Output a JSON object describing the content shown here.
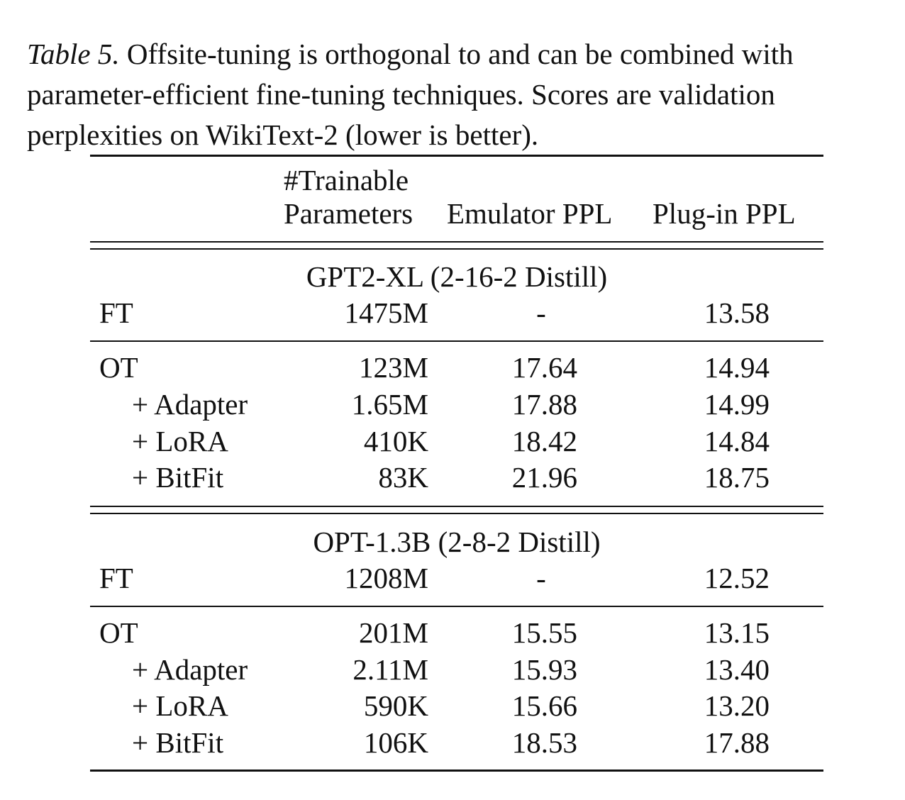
{
  "caption": {
    "label": "Table 5.",
    "text": " Offsite-tuning is orthogonal to and can be combined with parameter-efficient fine-tuning techniques. Scores are validation perplexities on WikiText-2 (lower is better)."
  },
  "headers": {
    "params_line1": "#Trainable",
    "params_line2": "Parameters",
    "emulator": "Emulator PPL",
    "plugin": "Plug-in PPL"
  },
  "sections": [
    {
      "title": "GPT2-XL (2-16-2 Distill)",
      "ft": {
        "method": "FT",
        "params": "1475M",
        "emulator": "-",
        "plugin": "13.58"
      },
      "ot_rows": [
        {
          "method": "OT",
          "params": "123M",
          "emulator": "17.64",
          "plugin": "14.94"
        },
        {
          "method": "+ Adapter",
          "params": "1.65M",
          "emulator": "17.88",
          "plugin": "14.99"
        },
        {
          "method": "+ LoRA",
          "params": "410K",
          "emulator": "18.42",
          "plugin": "14.84"
        },
        {
          "method": "+ BitFit",
          "params": "83K",
          "emulator": "21.96",
          "plugin": "18.75"
        }
      ]
    },
    {
      "title": "OPT-1.3B (2-8-2 Distill)",
      "ft": {
        "method": "FT",
        "params": "1208M",
        "emulator": "-",
        "plugin": "12.52"
      },
      "ot_rows": [
        {
          "method": "OT",
          "params": "201M",
          "emulator": "15.55",
          "plugin": "13.15"
        },
        {
          "method": "+ Adapter",
          "params": "2.11M",
          "emulator": "15.93",
          "plugin": "13.40"
        },
        {
          "method": "+ LoRA",
          "params": "590K",
          "emulator": "15.66",
          "plugin": "13.20"
        },
        {
          "method": "+ BitFit",
          "params": "106K",
          "emulator": "18.53",
          "plugin": "17.88"
        }
      ]
    }
  ]
}
